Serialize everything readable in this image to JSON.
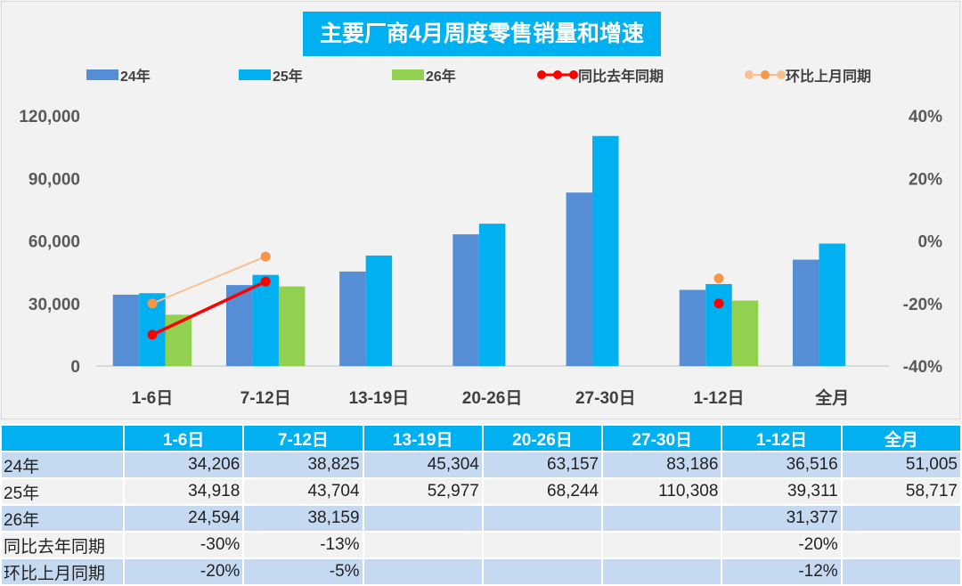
{
  "chart_data": {
    "type": "bar",
    "title": "主要厂商4月周度零售销量和增速",
    "categories": [
      "1-6日",
      "7-12日",
      "13-19日",
      "20-26日",
      "27-30日",
      "1-12日",
      "全月"
    ],
    "series": [
      {
        "name": "24年",
        "kind": "bar",
        "axis": "left",
        "color": "#558ed5",
        "values": [
          34206,
          38825,
          45304,
          63157,
          83186,
          36516,
          51005
        ]
      },
      {
        "name": "25年",
        "kind": "bar",
        "axis": "left",
        "color": "#00b0f0",
        "values": [
          34918,
          43704,
          52977,
          68244,
          110308,
          39311,
          58717
        ]
      },
      {
        "name": "26年",
        "kind": "bar",
        "axis": "left",
        "color": "#92d050",
        "values": [
          24594,
          38159,
          null,
          null,
          null,
          31377,
          null
        ]
      },
      {
        "name": "同比去年同期",
        "kind": "line",
        "axis": "right",
        "color": "#ff0000",
        "values": [
          -30,
          -13,
          null,
          null,
          null,
          -20,
          null
        ]
      },
      {
        "name": "环比上月同期",
        "kind": "line",
        "axis": "right",
        "color": "#f79646",
        "line_color": "#fac090",
        "values": [
          -20,
          -5,
          null,
          null,
          null,
          -12,
          null
        ]
      }
    ],
    "y_left": {
      "range": [
        0,
        120000
      ],
      "ticks": [
        "0",
        "30,000",
        "60,000",
        "90,000",
        "120,000"
      ]
    },
    "y_right": {
      "range": [
        -40,
        40
      ],
      "unit": "%",
      "ticks": [
        "-40%",
        "-20%",
        "0%",
        "20%",
        "40%"
      ]
    },
    "legend_placement": "top",
    "grid": false
  },
  "table": {
    "headers": [
      "",
      "1-6日",
      "7-12日",
      "13-19日",
      "20-26日",
      "27-30日",
      "1-12日",
      "全月"
    ],
    "rows": [
      [
        "24年",
        "34,206",
        "38,825",
        "45,304",
        "63,157",
        "83,186",
        "36,516",
        "51,005"
      ],
      [
        "25年",
        "34,918",
        "43,704",
        "52,977",
        "68,244",
        "110,308",
        "39,311",
        "58,717"
      ],
      [
        "26年",
        "24,594",
        "38,159",
        "",
        "",
        "",
        "31,377",
        ""
      ],
      [
        "同比去年同期",
        "-30%",
        "-13%",
        "",
        "",
        "",
        "-20%",
        ""
      ],
      [
        "环比上月同期",
        "-20%",
        "-5%",
        "",
        "",
        "",
        "-12%",
        ""
      ]
    ]
  }
}
